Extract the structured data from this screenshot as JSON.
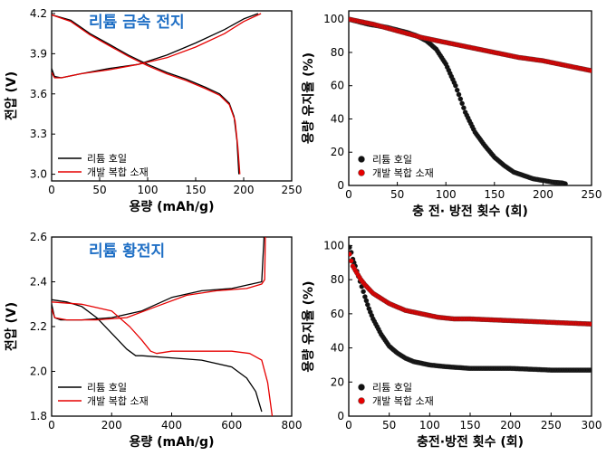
{
  "chart_data": [
    {
      "id": "tl",
      "type": "line",
      "title": "리튬 금속 전지",
      "xlabel": "용량 (mAh/g)",
      "ylabel": "전압 (V)",
      "xlim": [
        0,
        250
      ],
      "ylim": [
        2.95,
        4.22
      ],
      "xticks": [
        0,
        50,
        100,
        150,
        200,
        250
      ],
      "yticks": [
        3.0,
        3.3,
        3.6,
        3.9,
        4.2
      ],
      "ytick_decimals": 1,
      "legend_position": "bottom-left",
      "series": [
        {
          "name": "리튬 호일",
          "color": "#000000",
          "segments": [
            [
              [
                0,
                4.19
              ],
              [
                20,
                4.15
              ],
              [
                40,
                4.05
              ],
              [
                60,
                3.97
              ],
              [
                80,
                3.89
              ],
              [
                100,
                3.82
              ],
              [
                120,
                3.76
              ],
              [
                140,
                3.71
              ],
              [
                160,
                3.65
              ],
              [
                175,
                3.6
              ],
              [
                185,
                3.53
              ],
              [
                190,
                3.43
              ],
              [
                193,
                3.25
              ],
              [
                195,
                3.0
              ]
            ],
            [
              [
                0,
                3.79
              ],
              [
                3,
                3.73
              ],
              [
                10,
                3.72
              ],
              [
                30,
                3.75
              ],
              [
                60,
                3.79
              ],
              [
                90,
                3.82
              ],
              [
                120,
                3.89
              ],
              [
                150,
                3.98
              ],
              [
                180,
                4.08
              ],
              [
                200,
                4.16
              ],
              [
                215,
                4.2
              ]
            ]
          ]
        },
        {
          "name": "개발 복합 소재",
          "color": "#e60000",
          "segments": [
            [
              [
                0,
                4.19
              ],
              [
                20,
                4.14
              ],
              [
                40,
                4.04
              ],
              [
                60,
                3.96
              ],
              [
                80,
                3.88
              ],
              [
                100,
                3.81
              ],
              [
                120,
                3.75
              ],
              [
                140,
                3.7
              ],
              [
                160,
                3.64
              ],
              [
                175,
                3.59
              ],
              [
                185,
                3.52
              ],
              [
                191,
                3.4
              ],
              [
                194,
                3.2
              ],
              [
                196,
                3.0
              ]
            ],
            [
              [
                0,
                3.76
              ],
              [
                3,
                3.72
              ],
              [
                10,
                3.72
              ],
              [
                30,
                3.75
              ],
              [
                60,
                3.78
              ],
              [
                90,
                3.82
              ],
              [
                120,
                3.87
              ],
              [
                150,
                3.95
              ],
              [
                180,
                4.05
              ],
              [
                200,
                4.14
              ],
              [
                218,
                4.2
              ]
            ]
          ]
        }
      ]
    },
    {
      "id": "tr",
      "type": "scatter",
      "xlabel": "충 전· 방전 횟수 (회)",
      "ylabel": "용량 유지율 (%)",
      "xlim": [
        0,
        250
      ],
      "ylim": [
        0,
        105
      ],
      "xticks": [
        0,
        50,
        100,
        150,
        200,
        250
      ],
      "yticks": [
        0,
        20,
        40,
        60,
        80,
        100
      ],
      "ytick_decimals": 0,
      "legend_position": "bottom-left",
      "series": [
        {
          "name": "리튬 호일",
          "color": "#111111",
          "points": [
            [
              0,
              100
            ],
            [
              20,
              97
            ],
            [
              40,
              95
            ],
            [
              60,
              92
            ],
            [
              70,
              90
            ],
            [
              80,
              87
            ],
            [
              90,
              82
            ],
            [
              100,
              73
            ],
            [
              110,
              60
            ],
            [
              115,
              52
            ],
            [
              120,
              44
            ],
            [
              130,
              32
            ],
            [
              140,
              24
            ],
            [
              150,
              17
            ],
            [
              160,
              12
            ],
            [
              170,
              8
            ],
            [
              180,
              6
            ],
            [
              190,
              4
            ],
            [
              200,
              3
            ],
            [
              210,
              2
            ],
            [
              220,
              1.5
            ],
            [
              223,
              1
            ]
          ]
        },
        {
          "name": "개발 복합 소재",
          "color": "#e60000",
          "points": [
            [
              0,
              100
            ],
            [
              25,
              97
            ],
            [
              50,
              93
            ],
            [
              75,
              89
            ],
            [
              100,
              86
            ],
            [
              125,
              83
            ],
            [
              150,
              80
            ],
            [
              175,
              77
            ],
            [
              200,
              75
            ],
            [
              225,
              72
            ],
            [
              250,
              69
            ]
          ]
        }
      ]
    },
    {
      "id": "bl",
      "type": "line",
      "title": "리튬 황전지",
      "xlabel": "용량 (mAh/g)",
      "ylabel": "전압 (V)",
      "xlim": [
        0,
        800
      ],
      "ylim": [
        1.8,
        2.6
      ],
      "xticks": [
        0,
        200,
        400,
        600,
        800
      ],
      "yticks": [
        1.8,
        2.0,
        2.2,
        2.4,
        2.6
      ],
      "ytick_decimals": 1,
      "legend_position": "bottom-left",
      "series": [
        {
          "name": "리튬 호일",
          "color": "#000000",
          "segments": [
            [
              [
                0,
                2.32
              ],
              [
                50,
                2.31
              ],
              [
                100,
                2.29
              ],
              [
                150,
                2.24
              ],
              [
                200,
                2.17
              ],
              [
                250,
                2.1
              ],
              [
                280,
                2.07
              ],
              [
                300,
                2.07
              ],
              [
                400,
                2.06
              ],
              [
                500,
                2.05
              ],
              [
                600,
                2.02
              ],
              [
                650,
                1.97
              ],
              [
                680,
                1.91
              ],
              [
                700,
                1.82
              ]
            ],
            [
              [
                0,
                2.3
              ],
              [
                10,
                2.24
              ],
              [
                30,
                2.23
              ],
              [
                100,
                2.23
              ],
              [
                200,
                2.24
              ],
              [
                300,
                2.27
              ],
              [
                400,
                2.33
              ],
              [
                500,
                2.36
              ],
              [
                600,
                2.37
              ],
              [
                700,
                2.4
              ],
              [
                708,
                2.6
              ]
            ]
          ]
        },
        {
          "name": "개발 복합 소재",
          "color": "#e60000",
          "segments": [
            [
              [
                0,
                2.31
              ],
              [
                100,
                2.3
              ],
              [
                200,
                2.27
              ],
              [
                260,
                2.2
              ],
              [
                300,
                2.14
              ],
              [
                330,
                2.09
              ],
              [
                350,
                2.08
              ],
              [
                400,
                2.09
              ],
              [
                500,
                2.09
              ],
              [
                600,
                2.09
              ],
              [
                660,
                2.08
              ],
              [
                700,
                2.05
              ],
              [
                720,
                1.95
              ],
              [
                735,
                1.8
              ]
            ],
            [
              [
                0,
                2.28
              ],
              [
                10,
                2.24
              ],
              [
                50,
                2.23
              ],
              [
                150,
                2.23
              ],
              [
                250,
                2.24
              ],
              [
                350,
                2.29
              ],
              [
                450,
                2.34
              ],
              [
                550,
                2.36
              ],
              [
                650,
                2.37
              ],
              [
                700,
                2.39
              ],
              [
                710,
                2.41
              ],
              [
                712,
                2.6
              ]
            ]
          ]
        }
      ]
    },
    {
      "id": "br",
      "type": "scatter",
      "xlabel": "충전·방전 횟수 (회)",
      "ylabel": "용량 유지율 (%)",
      "xlim": [
        0,
        300
      ],
      "ylim": [
        0,
        105
      ],
      "xticks": [
        0,
        50,
        100,
        150,
        200,
        250,
        300
      ],
      "yticks": [
        0,
        20,
        40,
        60,
        80,
        100
      ],
      "ytick_decimals": 0,
      "legend_position": "bottom-left",
      "series": [
        {
          "name": "리튬 호일",
          "color": "#111111",
          "points": [
            [
              1,
              99
            ],
            [
              3,
              96
            ],
            [
              5,
              92
            ],
            [
              8,
              88
            ],
            [
              12,
              82
            ],
            [
              16,
              76
            ],
            [
              20,
              70
            ],
            [
              25,
              63
            ],
            [
              30,
              57
            ],
            [
              40,
              48
            ],
            [
              50,
              41
            ],
            [
              60,
              37
            ],
            [
              70,
              34
            ],
            [
              80,
              32
            ],
            [
              90,
              31
            ],
            [
              100,
              30
            ],
            [
              120,
              29
            ],
            [
              150,
              28
            ],
            [
              200,
              28
            ],
            [
              250,
              27
            ],
            [
              300,
              27
            ]
          ]
        },
        {
          "name": "개발 복합 소재",
          "color": "#e60000",
          "points": [
            [
              1,
              95
            ],
            [
              3,
              91
            ],
            [
              5,
              88
            ],
            [
              10,
              84
            ],
            [
              15,
              80
            ],
            [
              20,
              77
            ],
            [
              30,
              72
            ],
            [
              40,
              69
            ],
            [
              50,
              66
            ],
            [
              70,
              62
            ],
            [
              90,
              60
            ],
            [
              110,
              58
            ],
            [
              130,
              57
            ],
            [
              150,
              57
            ],
            [
              200,
              56
            ],
            [
              250,
              55
            ],
            [
              300,
              54
            ]
          ]
        }
      ]
    }
  ]
}
